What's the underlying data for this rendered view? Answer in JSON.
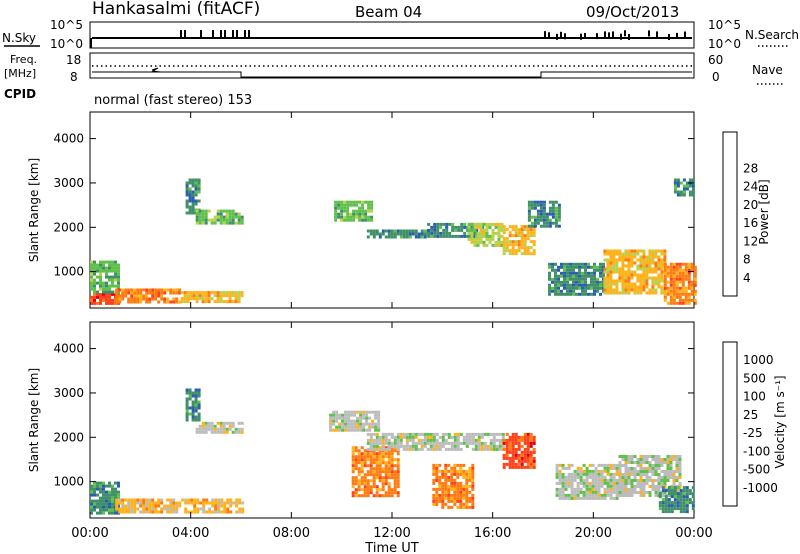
{
  "header": {
    "station": "Hankasalmi (fitACF)",
    "beam": "Beam 04",
    "date": "09/Oct/2013"
  },
  "left_labels": {
    "nsky": "N.Sky",
    "freq": "Freq.",
    "freq_unit": "[MHz]",
    "cpid": "CPID"
  },
  "right_labels": {
    "nsearch": "N.Search",
    "nave": "Nave"
  },
  "cpid_text": "normal (fast stereo) 153",
  "noise_axis": {
    "left_ticks": [
      "10^5",
      "10^0"
    ],
    "right_ticks": [
      "10^5",
      "10^0"
    ]
  },
  "freq_axis": {
    "left_ticks": [
      "18",
      "8"
    ],
    "right_ticks": [
      "60",
      "0"
    ]
  },
  "x_axis": {
    "label": "Time UT",
    "ticks": [
      "00:00",
      "04:00",
      "08:00",
      "12:00",
      "16:00",
      "20:00",
      "00:00"
    ]
  },
  "colors": {
    "power": [
      "#1f2fe0",
      "#2a5fb0",
      "#3f8f6a",
      "#5fc04a",
      "#b9d24a",
      "#ffb21a",
      "#ff7a10",
      "#ff4018",
      "#e00010"
    ],
    "velocity": [
      "#1f2fe0",
      "#2a5fb0",
      "#3f8f6a",
      "#5fc04a",
      "#bcbcbc",
      "#ffb21a",
      "#ff7a10",
      "#ff4018",
      "#e00010"
    ],
    "ground_scatter": "#bcbcbc"
  },
  "chart_data": [
    {
      "type": "heatmap",
      "panel": "power",
      "ylabel": "Slant Range [km]",
      "xlabel": "",
      "xlim_hours": [
        0,
        24
      ],
      "ylim": [
        180,
        4600
      ],
      "yticks": [
        1000,
        2000,
        3000,
        4000
      ],
      "colorbar": {
        "label": "Power [dB]",
        "ticks": [
          "4",
          "8",
          "12",
          "16",
          "20",
          "24",
          "28"
        ],
        "range": [
          0,
          32
        ]
      },
      "regions": [
        {
          "t": [
            0.0,
            1.1
          ],
          "r": [
            280,
            520
          ],
          "value": 28
        },
        {
          "t": [
            0.0,
            1.1
          ],
          "r": [
            520,
            1250
          ],
          "value": 12
        },
        {
          "t": [
            1.0,
            3.6
          ],
          "r": [
            330,
            620
          ],
          "value": 26
        },
        {
          "t": [
            3.6,
            6.1
          ],
          "r": [
            330,
            560
          ],
          "value": 22
        },
        {
          "t": [
            3.8,
            4.3
          ],
          "r": [
            2300,
            3100
          ],
          "value": 10
        },
        {
          "t": [
            4.2,
            6.0
          ],
          "r": [
            2100,
            2400
          ],
          "value": 12
        },
        {
          "t": [
            9.7,
            11.2
          ],
          "r": [
            2150,
            2600
          ],
          "value": 14
        },
        {
          "t": [
            11.0,
            13.4
          ],
          "r": [
            1800,
            1950
          ],
          "value": 10
        },
        {
          "t": [
            13.4,
            15.6
          ],
          "r": [
            1800,
            2100
          ],
          "value": 10
        },
        {
          "t": [
            15.0,
            16.4
          ],
          "r": [
            1600,
            2100
          ],
          "value": 16
        },
        {
          "t": [
            16.4,
            17.6
          ],
          "r": [
            1400,
            2050
          ],
          "value": 20
        },
        {
          "t": [
            17.4,
            18.6
          ],
          "r": [
            2000,
            2600
          ],
          "value": 8
        },
        {
          "t": [
            18.2,
            20.4
          ],
          "r": [
            500,
            1200
          ],
          "value": 8
        },
        {
          "t": [
            20.4,
            22.8
          ],
          "r": [
            550,
            1500
          ],
          "value": 22
        },
        {
          "t": [
            22.8,
            24.0
          ],
          "r": [
            300,
            1200
          ],
          "value": 26
        },
        {
          "t": [
            23.2,
            24.0
          ],
          "r": [
            2700,
            3100
          ],
          "value": 8
        }
      ]
    },
    {
      "type": "heatmap",
      "panel": "velocity",
      "ylabel": "Slant Range [km]",
      "xlabel": "Time UT",
      "xlim_hours": [
        0,
        24
      ],
      "ylim": [
        180,
        4600
      ],
      "yticks": [
        1000,
        2000,
        3000,
        4000
      ],
      "colorbar": {
        "label": "Velocity [m s⁻¹]",
        "ticks": [
          "1000",
          "500",
          "100",
          "25",
          "-25",
          "-100",
          "-500",
          "-1000"
        ],
        "range": [
          -1000,
          1000
        ]
      },
      "regions": [
        {
          "t": [
            0.0,
            1.1
          ],
          "r": [
            280,
            1000
          ],
          "value": 80
        },
        {
          "t": [
            1.0,
            6.1
          ],
          "r": [
            330,
            620
          ],
          "value": -30
        },
        {
          "t": [
            3.8,
            4.3
          ],
          "r": [
            2400,
            3100
          ],
          "value": 60
        },
        {
          "t": [
            4.2,
            6.0
          ],
          "r": [
            2100,
            2350
          ],
          "value": 0
        },
        {
          "t": [
            9.5,
            11.5
          ],
          "r": [
            2150,
            2600
          ],
          "value": 0
        },
        {
          "t": [
            10.4,
            12.3
          ],
          "r": [
            700,
            1800
          ],
          "value": -400
        },
        {
          "t": [
            11.0,
            16.4
          ],
          "r": [
            1750,
            2100
          ],
          "value": 0
        },
        {
          "t": [
            13.6,
            15.2
          ],
          "r": [
            450,
            1400
          ],
          "value": -200
        },
        {
          "t": [
            16.4,
            17.6
          ],
          "r": [
            1300,
            2100
          ],
          "value": -600
        },
        {
          "t": [
            18.5,
            21.0
          ],
          "r": [
            600,
            1400
          ],
          "value": 0
        },
        {
          "t": [
            21.0,
            23.4
          ],
          "r": [
            700,
            1600
          ],
          "value": 0
        },
        {
          "t": [
            22.6,
            24.0
          ],
          "r": [
            300,
            900
          ],
          "value": 80
        }
      ]
    }
  ]
}
